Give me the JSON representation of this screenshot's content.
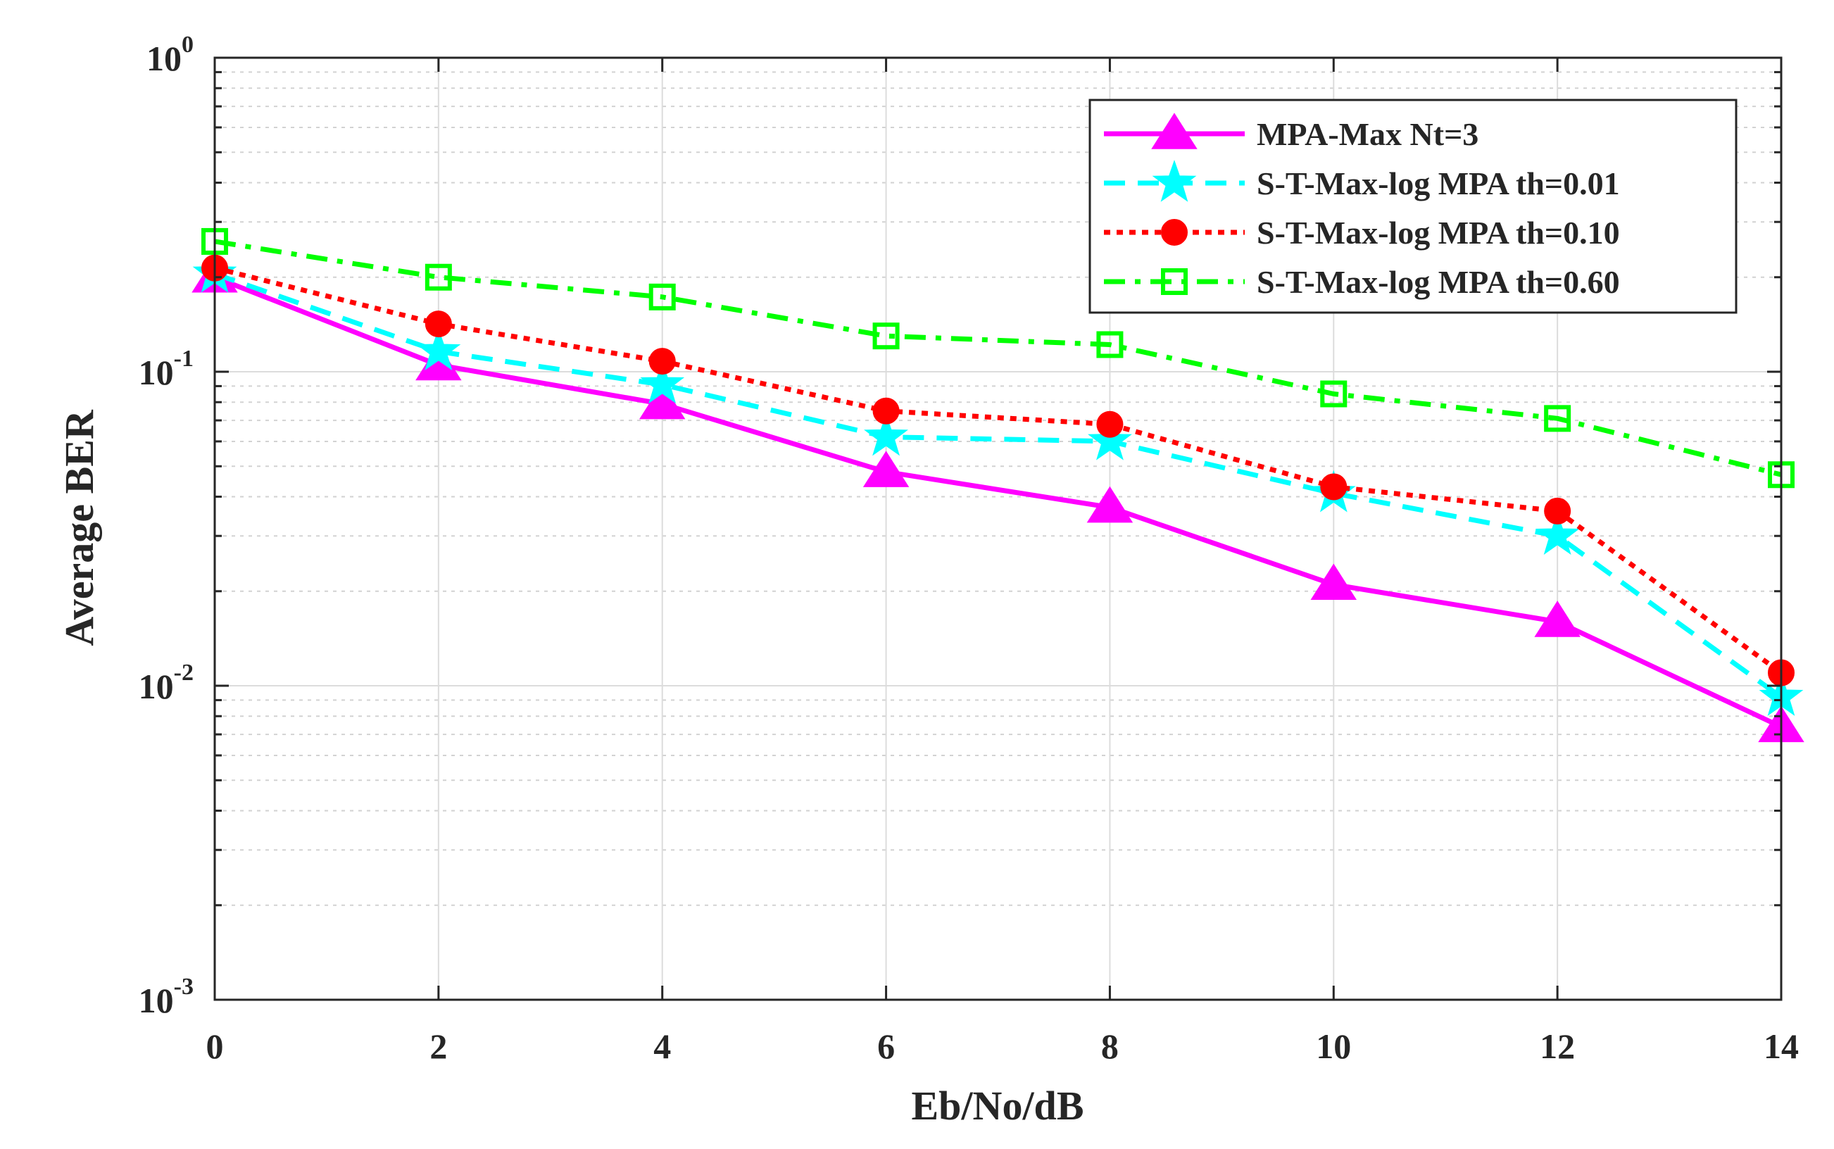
{
  "chart_data": {
    "type": "line",
    "title": "",
    "xlabel": "Eb/No/dB",
    "ylabel": "Average BER",
    "x": [
      0,
      2,
      4,
      6,
      8,
      10,
      12,
      14
    ],
    "xlim": [
      0,
      14
    ],
    "ylim": [
      0.001,
      1
    ],
    "yscale": "log",
    "x_ticks": [
      "0",
      "2",
      "4",
      "6",
      "8",
      "10",
      "12",
      "14"
    ],
    "y_ticks": [
      {
        "value": 1,
        "base": "10",
        "exp": "0"
      },
      {
        "value": 0.1,
        "base": "10",
        "exp": "-1"
      },
      {
        "value": 0.01,
        "base": "10",
        "exp": "-2"
      },
      {
        "value": 0.001,
        "base": "10",
        "exp": "-3"
      }
    ],
    "grid": true,
    "legend_position": "top-right",
    "series": [
      {
        "name": "MPA-Max Nt=3",
        "color": "#ff00ff",
        "line_style": "solid",
        "marker": "triangle",
        "values": [
          0.2,
          0.105,
          0.079,
          0.048,
          0.037,
          0.021,
          0.016,
          0.0074
        ]
      },
      {
        "name": "S-T-Max-log MPA th=0.01",
        "color": "#00ffff",
        "line_style": "dashed",
        "marker": "star",
        "values": [
          0.205,
          0.116,
          0.091,
          0.062,
          0.06,
          0.041,
          0.03,
          0.0092
        ]
      },
      {
        "name": "S-T-Max-log MPA th=0.10",
        "color": "#ff0000",
        "line_style": "dotted",
        "marker": "circle",
        "values": [
          0.214,
          0.142,
          0.108,
          0.075,
          0.068,
          0.043,
          0.036,
          0.011
        ]
      },
      {
        "name": "S-T-Max-log MPA th=0.60",
        "color": "#00ff00",
        "line_style": "dashdot",
        "marker": "square",
        "values": [
          0.26,
          0.2,
          0.173,
          0.13,
          0.122,
          0.085,
          0.071,
          0.047
        ]
      }
    ]
  }
}
